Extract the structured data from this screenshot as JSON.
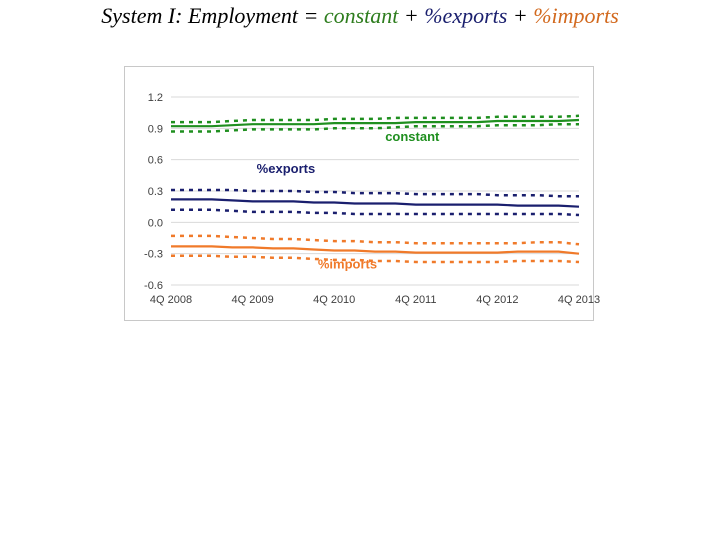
{
  "title": {
    "prefix": "System I: Employment =",
    "constant": "constant",
    "plus1": "+",
    "exports": "%exports",
    "plus2": "+",
    "imports": "%imports"
  },
  "colors": {
    "constant": "#1f8f1f",
    "exports": "#1a1f6e",
    "imports": "#f07a2a",
    "title_constant": "#2e7d1e",
    "title_exports": "#1a1f6e",
    "title_imports": "#d2691e",
    "grid": "#d9d9d9",
    "axis_text": "#404040"
  },
  "chart_data": {
    "type": "line",
    "title": "",
    "xlabel": "",
    "ylabel": "",
    "ylim": [
      -0.6,
      1.2
    ],
    "yticks": [
      1.2,
      0.9,
      0.6,
      0.3,
      0.0,
      -0.3,
      -0.6
    ],
    "ytick_labels": [
      "1.2",
      "0.9",
      "0.6",
      "0.3",
      "0.0",
      "-0.3",
      "-0.6"
    ],
    "x": [
      0,
      1,
      2,
      3,
      4,
      5,
      6,
      7,
      8,
      9,
      10,
      11,
      12,
      13,
      14,
      15,
      16,
      17,
      18,
      19,
      20
    ],
    "xticks": [
      0,
      4,
      8,
      12,
      16,
      20
    ],
    "xtick_labels": [
      "4Q 2008",
      "4Q 2009",
      "4Q 2010",
      "4Q 2011",
      "4Q 2012",
      "4Q 2013"
    ],
    "grid": "horizontal",
    "series": [
      {
        "name": "constant",
        "values": [
          0.92,
          0.92,
          0.92,
          0.93,
          0.94,
          0.94,
          0.94,
          0.94,
          0.95,
          0.95,
          0.95,
          0.95,
          0.96,
          0.96,
          0.96,
          0.96,
          0.97,
          0.97,
          0.97,
          0.97,
          0.98
        ],
        "lower": [
          0.87,
          0.87,
          0.87,
          0.88,
          0.89,
          0.89,
          0.89,
          0.89,
          0.9,
          0.9,
          0.9,
          0.91,
          0.92,
          0.92,
          0.92,
          0.92,
          0.93,
          0.93,
          0.93,
          0.94,
          0.94
        ],
        "upper": [
          0.96,
          0.96,
          0.96,
          0.97,
          0.98,
          0.98,
          0.98,
          0.98,
          0.99,
          0.99,
          0.99,
          1.0,
          1.0,
          1.0,
          1.0,
          1.0,
          1.01,
          1.01,
          1.01,
          1.01,
          1.02
        ]
      },
      {
        "name": "%exports",
        "values": [
          0.22,
          0.22,
          0.22,
          0.21,
          0.2,
          0.2,
          0.2,
          0.19,
          0.19,
          0.18,
          0.18,
          0.18,
          0.17,
          0.17,
          0.17,
          0.17,
          0.17,
          0.16,
          0.16,
          0.16,
          0.15
        ],
        "lower": [
          0.12,
          0.12,
          0.12,
          0.11,
          0.1,
          0.1,
          0.1,
          0.09,
          0.09,
          0.08,
          0.08,
          0.08,
          0.08,
          0.08,
          0.08,
          0.08,
          0.08,
          0.08,
          0.08,
          0.08,
          0.07
        ],
        "upper": [
          0.31,
          0.31,
          0.31,
          0.31,
          0.3,
          0.3,
          0.3,
          0.29,
          0.29,
          0.28,
          0.28,
          0.28,
          0.27,
          0.27,
          0.27,
          0.27,
          0.26,
          0.26,
          0.26,
          0.25,
          0.25
        ]
      },
      {
        "name": "%imports",
        "values": [
          -0.23,
          -0.23,
          -0.23,
          -0.24,
          -0.24,
          -0.25,
          -0.25,
          -0.26,
          -0.27,
          -0.27,
          -0.28,
          -0.28,
          -0.29,
          -0.29,
          -0.29,
          -0.29,
          -0.29,
          -0.28,
          -0.28,
          -0.28,
          -0.3
        ],
        "lower": [
          -0.32,
          -0.32,
          -0.32,
          -0.33,
          -0.33,
          -0.34,
          -0.34,
          -0.35,
          -0.36,
          -0.36,
          -0.37,
          -0.37,
          -0.38,
          -0.38,
          -0.38,
          -0.38,
          -0.38,
          -0.37,
          -0.37,
          -0.37,
          -0.38
        ],
        "upper": [
          -0.13,
          -0.13,
          -0.13,
          -0.14,
          -0.15,
          -0.16,
          -0.16,
          -0.17,
          -0.18,
          -0.18,
          -0.19,
          -0.19,
          -0.2,
          -0.2,
          -0.2,
          -0.2,
          -0.2,
          -0.2,
          -0.19,
          -0.19,
          -0.21
        ]
      }
    ],
    "annotations": [
      {
        "text": "constant",
        "series": "constant",
        "x": 10.5,
        "y": 0.78
      },
      {
        "text": "%exports",
        "series": "%exports",
        "x": 4.2,
        "y": 0.47
      },
      {
        "text": "%imports",
        "series": "%imports",
        "x": 7.2,
        "y": -0.44
      }
    ]
  }
}
